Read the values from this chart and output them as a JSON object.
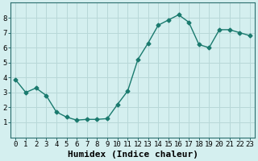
{
  "x": [
    0,
    1,
    2,
    3,
    4,
    5,
    6,
    7,
    8,
    9,
    10,
    11,
    12,
    13,
    14,
    15,
    16,
    17,
    18,
    19,
    20,
    21,
    22,
    23
  ],
  "y": [
    3.85,
    3.0,
    3.3,
    2.8,
    1.7,
    1.35,
    1.15,
    1.2,
    1.2,
    1.25,
    2.2,
    3.1,
    5.2,
    6.3,
    7.5,
    7.85,
    8.2,
    7.7,
    6.2,
    6.0,
    7.2,
    7.2,
    7.0,
    6.8
  ],
  "line_color": "#1a7a6e",
  "marker": "D",
  "marker_size": 2.5,
  "bg_color": "#d4efef",
  "grid_color": "#b8d8d8",
  "xlabel": "Humidex (Indice chaleur)",
  "xlim": [
    -0.5,
    23.5
  ],
  "ylim": [
    0,
    9
  ],
  "yticks": [
    1,
    2,
    3,
    4,
    5,
    6,
    7,
    8
  ],
  "xticks": [
    0,
    1,
    2,
    3,
    4,
    5,
    6,
    7,
    8,
    9,
    10,
    11,
    12,
    13,
    14,
    15,
    16,
    17,
    18,
    19,
    20,
    21,
    22,
    23
  ],
  "xtick_labels": [
    "0",
    "1",
    "2",
    "3",
    "4",
    "5",
    "6",
    "7",
    "8",
    "9",
    "10",
    "11",
    "12",
    "13",
    "14",
    "15",
    "16",
    "17",
    "18",
    "19",
    "20",
    "21",
    "22",
    "23"
  ],
  "tick_fontsize": 6.5,
  "label_fontsize": 8,
  "spine_color": "#2a6e6e"
}
